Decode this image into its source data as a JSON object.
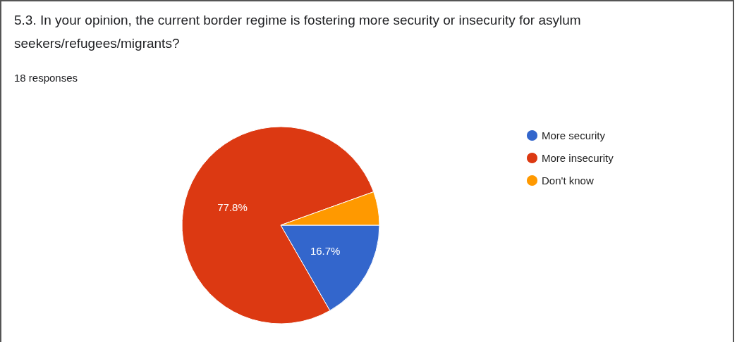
{
  "chart_data": {
    "type": "pie",
    "title": "5.3. In your opinion, the current border regime is fostering more security or insecurity for asylum seekers/refugees/migrants?",
    "subtitle": "18 responses",
    "categories": [
      "More security",
      "More insecurity",
      "Don't know"
    ],
    "values": [
      16.7,
      77.8,
      5.5
    ],
    "colors": [
      "#3366cc",
      "#dc3912",
      "#ff9900"
    ],
    "value_labels": [
      "16.7%",
      "77.8%",
      null
    ],
    "legend": "right"
  }
}
